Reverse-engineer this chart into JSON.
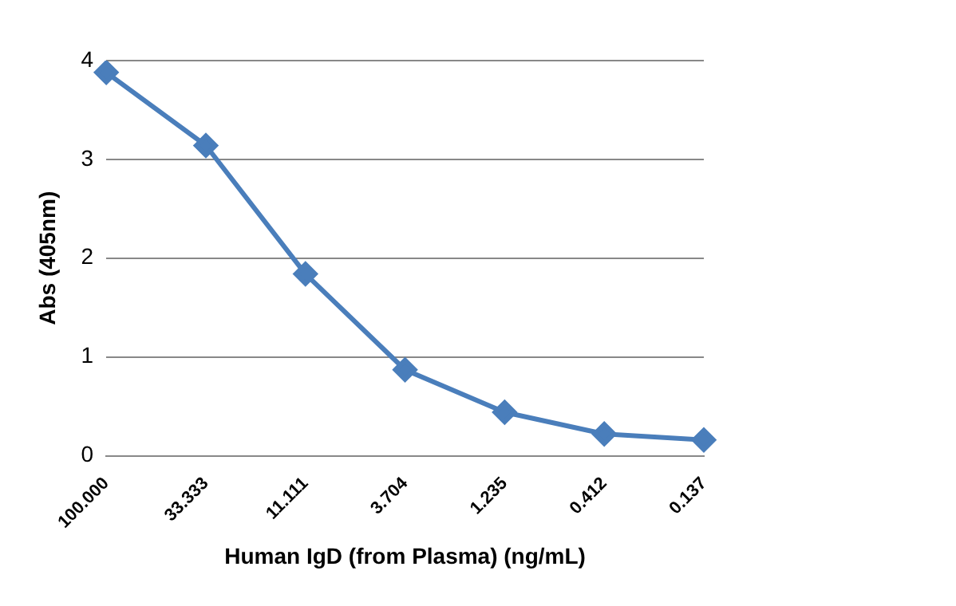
{
  "chart_data": {
    "type": "line",
    "xlabel": "Human IgD (from Plasma) (ng/mL)",
    "ylabel": "Abs (405nm)",
    "categories": [
      "100.000",
      "33.333",
      "11.111",
      "3.704",
      "1.235",
      "0.412",
      "0.137"
    ],
    "series": [
      {
        "color": "#4a7ebb",
        "values": [
          3.88,
          3.14,
          1.84,
          0.87,
          0.44,
          0.22,
          0.16
        ]
      }
    ],
    "ylim": [
      0,
      4
    ],
    "yticks": [
      0,
      1,
      2,
      3,
      4
    ],
    "grid": "y",
    "legend": false,
    "marker": "diamond",
    "line_style": "solid"
  }
}
